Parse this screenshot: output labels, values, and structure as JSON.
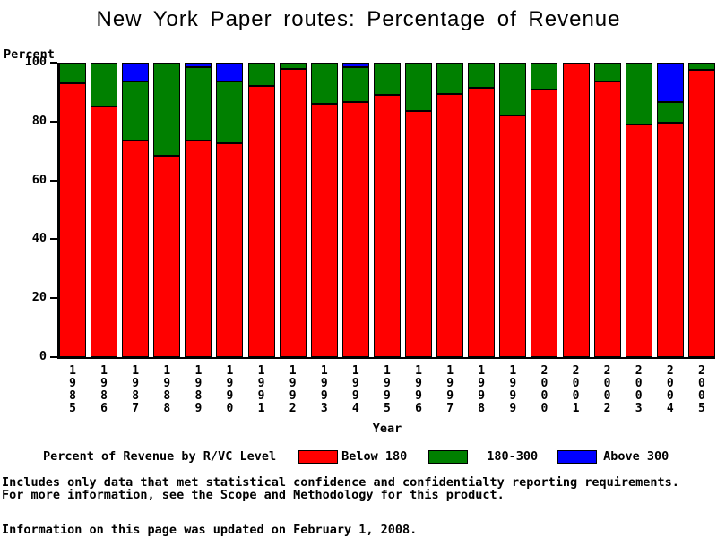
{
  "title": "New York Paper routes: Percentage of Revenue",
  "chart_data": {
    "type": "bar",
    "stacked": true,
    "title": "New York Paper routes: Percentage of Revenue",
    "xlabel": "Year",
    "ylabel": "Percent",
    "ylim": [
      0,
      100
    ],
    "yticks": [
      0,
      20,
      40,
      60,
      80,
      100
    ],
    "grid": false,
    "legend_position": "bottom",
    "legend_title": "Percent of Revenue by R/VC Level",
    "categories": [
      "1985",
      "1986",
      "1987",
      "1988",
      "1989",
      "1990",
      "1991",
      "1992",
      "1993",
      "1994",
      "1995",
      "1996",
      "1997",
      "1998",
      "1999",
      "2000",
      "2001",
      "2002",
      "2003",
      "2004",
      "2005"
    ],
    "series": [
      {
        "name": "Below 180",
        "color": "#ff0000",
        "values": [
          93,
          85,
          73.5,
          68.5,
          73.5,
          72.5,
          92,
          98,
          86,
          86.5,
          89,
          83.5,
          89.5,
          91.5,
          82,
          91,
          100,
          93.5,
          79,
          79.5,
          97.5
        ]
      },
      {
        "name": "180-300",
        "color": "#008000",
        "values": [
          7,
          15,
          20,
          31.5,
          25,
          21,
          8,
          2,
          14,
          12,
          11,
          16.5,
          10.5,
          8.5,
          18,
          9,
          0,
          6.5,
          21,
          7,
          2.5
        ]
      },
      {
        "name": "Above 300",
        "color": "#0000ff",
        "values": [
          0,
          0,
          6.5,
          0,
          1.5,
          6.5,
          0,
          0,
          0,
          1.5,
          0,
          0,
          0,
          0,
          0,
          0,
          0,
          0,
          0,
          13.5,
          0
        ]
      }
    ]
  },
  "footer": {
    "line1": "Includes only data that met statistical confidence and confidentialty reporting requirements.",
    "line2": "For more information, see the Scope and Methodology for this product.",
    "updated": "Information on this page was updated on February 1, 2008."
  }
}
